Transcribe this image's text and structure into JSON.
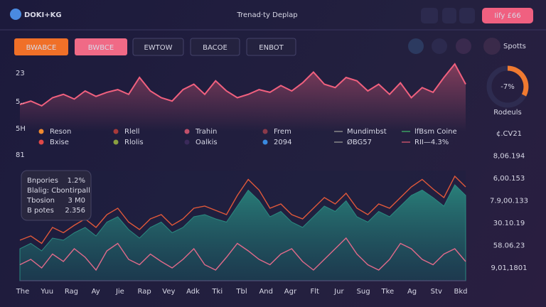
{
  "header": {
    "logo": "DOKI+KG",
    "title": "Trenad·ty Deplap",
    "button": "Iify £66"
  },
  "tabs": [
    "BWABCE",
    "BWBCE",
    "EWTOW",
    "BACOE",
    "ENBOT"
  ],
  "side_tab": "Spotts",
  "top_chart": {
    "y_labels": [
      "23",
      "5..",
      "5H",
      "81"
    ],
    "ylim": [
      0,
      100
    ],
    "color": "#f0607e",
    "values": [
      40,
      45,
      38,
      50,
      55,
      48,
      60,
      52,
      58,
      62,
      55,
      80,
      60,
      50,
      45,
      62,
      70,
      55,
      75,
      60,
      50,
      55,
      62,
      58,
      68,
      60,
      72,
      88,
      70,
      65,
      80,
      75,
      60,
      70,
      55,
      72,
      50,
      65,
      58,
      80,
      100,
      70
    ]
  },
  "legend": [
    {
      "name": "Reson",
      "color": "#f08a30"
    },
    {
      "name": "Rlell",
      "color": "#a83a3a"
    },
    {
      "name": "Trahin",
      "color": "#c0506a"
    },
    {
      "name": "Frem",
      "color": "#8a3a4a"
    },
    {
      "name": "Mundimbst",
      "color": "#1a1a3a"
    },
    {
      "name": "lfBsm Coine",
      "color": "#3aa060"
    },
    {
      "name": "Bxise",
      "color": "#e04848"
    },
    {
      "name": "Rlolis",
      "color": "#8aa040"
    },
    {
      "name": "Oalkis",
      "color": "#3a2a5a"
    },
    {
      "name": "2094",
      "color": "#3a8ae0"
    },
    {
      "name": "ØBG57",
      "color": "#1a1a3a"
    },
    {
      "name": "RII—4.3%",
      "color": "#c0506a"
    }
  ],
  "gauge": {
    "value": "-7%",
    "label": "Rodeuls"
  },
  "side_list": [
    "¢.CV21",
    "8,06.194",
    "6,00.153",
    "7.9,00.133",
    "30.10.19",
    "58.06.23",
    "9,01,1801"
  ],
  "tooltip": {
    "rows": [
      {
        "label": "Bnpories",
        "value": "1.2%"
      },
      {
        "label": "Blalig: Cbontirpall"
      },
      {
        "label": "Tbosion",
        "value": "3 M0"
      },
      {
        "label": "B potes",
        "value": "2.356"
      }
    ]
  },
  "bottom_chart": {
    "ylim": [
      0,
      100
    ],
    "x_labels": [
      "The",
      "Yuu",
      "Rag",
      "Ay",
      "Jie",
      "Rap",
      "Vey",
      "Adk",
      "Tki",
      "Tbl",
      "And",
      "Agr",
      "Flt",
      "Jur",
      "Sug",
      "Tke",
      "Ag",
      "Stv",
      "Bkd"
    ],
    "series": [
      {
        "color": "#2a8a80",
        "values": [
          30,
          35,
          28,
          40,
          38,
          45,
          50,
          42,
          55,
          60,
          48,
          40,
          50,
          55,
          45,
          50,
          60,
          62,
          58,
          55,
          70,
          85,
          75,
          60,
          65,
          55,
          50,
          60,
          70,
          65,
          75,
          60,
          55,
          65,
          60,
          70,
          80,
          85,
          78,
          70,
          90,
          80
        ]
      },
      {
        "color": "#e0583a",
        "values": [
          38,
          42,
          35,
          50,
          45,
          52,
          58,
          50,
          62,
          68,
          55,
          48,
          58,
          62,
          52,
          58,
          68,
          70,
          66,
          62,
          80,
          95,
          85,
          68,
          72,
          62,
          58,
          68,
          78,
          72,
          82,
          68,
          62,
          72,
          68,
          78,
          88,
          95,
          86,
          78,
          98,
          88
        ]
      },
      {
        "color": "#e06a8a",
        "values": [
          15,
          20,
          12,
          25,
          18,
          30,
          22,
          10,
          28,
          35,
          20,
          15,
          25,
          18,
          12,
          20,
          30,
          15,
          10,
          22,
          35,
          28,
          20,
          15,
          25,
          30,
          18,
          10,
          20,
          30,
          40,
          25,
          15,
          10,
          20,
          35,
          30,
          20,
          15,
          25,
          30,
          18
        ]
      }
    ]
  }
}
